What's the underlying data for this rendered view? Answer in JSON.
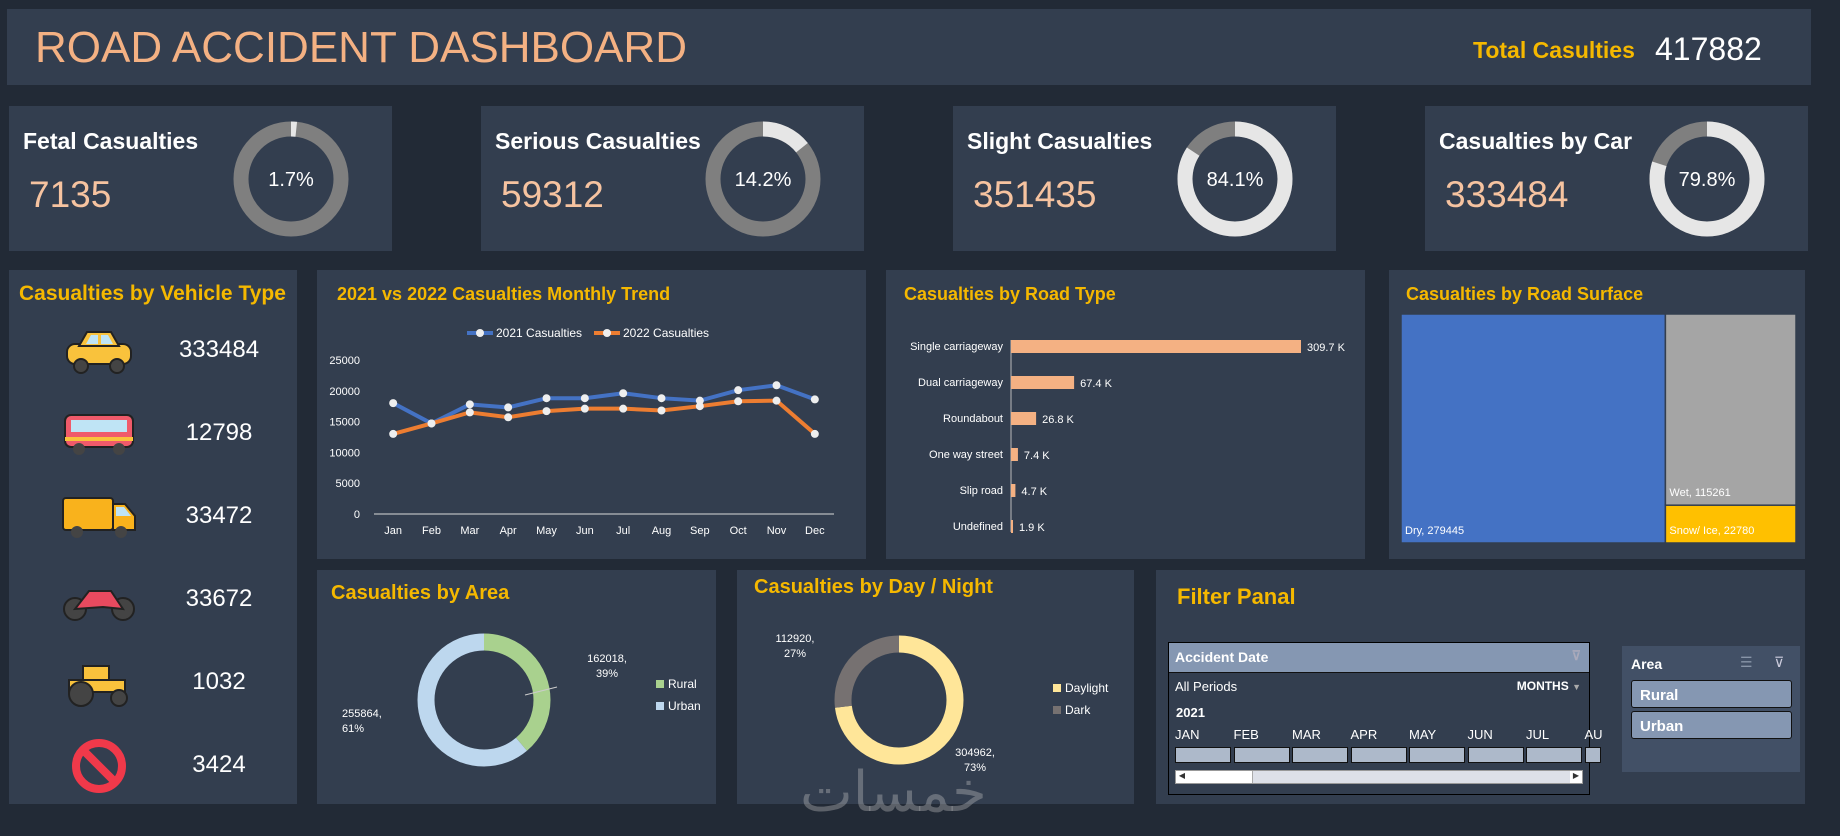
{
  "header": {
    "title": "ROAD ACCIDENT DASHBOARD",
    "total_label": "Total Casulties",
    "total_value": "417882"
  },
  "kpis": [
    {
      "title": "Fetal Casualties",
      "value": "7135",
      "pct_label": "1.7%",
      "pct": 1.7
    },
    {
      "title": "Serious Casualties",
      "value": "59312",
      "pct_label": "14.2%",
      "pct": 14.2
    },
    {
      "title": "Slight Casualties",
      "value": "351435",
      "pct_label": "84.1%",
      "pct": 84.1
    },
    {
      "title": "Casualties by Car",
      "value": "333484",
      "pct_label": "79.8%",
      "pct": 79.8
    }
  ],
  "vehicle": {
    "title": "Casualties by Vehicle Type",
    "items": [
      {
        "icon": "car-icon",
        "value": "333484"
      },
      {
        "icon": "bus-icon",
        "value": "12798"
      },
      {
        "icon": "van-icon",
        "value": "33472"
      },
      {
        "icon": "motorcycle-icon",
        "value": "33672"
      },
      {
        "icon": "tractor-icon",
        "value": "1032"
      },
      {
        "icon": "prohibited-icon",
        "value": "3424"
      }
    ]
  },
  "colors": {
    "s2021": "#4472c4",
    "s2022": "#ed7d31",
    "accent": "#f5b800",
    "bar": "#f4b183",
    "dry": "#4472c4",
    "wet": "#a5a5a5",
    "snow": "#ffc000",
    "rural": "#a9d18e",
    "urban": "#bdd7ee",
    "daylight": "#ffe699",
    "dark": "#767171"
  },
  "chart_data": [
    {
      "type": "line",
      "title": "2021 vs 2022 Casualties Monthly Trend",
      "categories": [
        "Jan",
        "Feb",
        "Mar",
        "Apr",
        "May",
        "Jun",
        "Jul",
        "Aug",
        "Sep",
        "Oct",
        "Nov",
        "Dec"
      ],
      "series": [
        {
          "name": "2021 Casualties",
          "values": [
            18000,
            14700,
            17800,
            17300,
            18800,
            18800,
            19600,
            18800,
            18400,
            20100,
            20900,
            18600
          ]
        },
        {
          "name": "2022 Casualties",
          "values": [
            13000,
            14700,
            16500,
            15700,
            16700,
            17100,
            17100,
            16800,
            17500,
            18300,
            18400,
            13000
          ]
        }
      ],
      "ylim": [
        0,
        25000
      ],
      "yticks": [
        "0",
        "5000",
        "10000",
        "15000",
        "20000",
        "25000"
      ],
      "legend": "top"
    },
    {
      "type": "bar",
      "orientation": "horizontal",
      "title": "Casualties by Road Type",
      "categories": [
        "Single carriageway",
        "Dual carriageway",
        "Roundabout",
        "One way street",
        "Slip road",
        "Undefined"
      ],
      "values": [
        309.7,
        67.4,
        26.8,
        7.4,
        4.7,
        1.9
      ],
      "labels": [
        "309.7 K",
        "67.4 K",
        "26.8 K",
        "7.4 K",
        "4.7 K",
        "1.9 K"
      ]
    },
    {
      "type": "treemap",
      "title": "Casualties by Road Surface",
      "categories": [
        "Dry",
        "Wet",
        "Snow/ Ice"
      ],
      "values": [
        279445,
        115261,
        22780
      ],
      "labels": [
        "Dry, 279445",
        "Wet, 115261",
        "Snow/ Ice, 22780"
      ]
    },
    {
      "type": "pie",
      "title": "Casualties by Area",
      "categories": [
        "Rural",
        "Urban"
      ],
      "values": [
        162018,
        255864
      ],
      "labels": [
        "162018, 39%",
        "255864, 61%"
      ],
      "legend": "right"
    },
    {
      "type": "pie",
      "title": "Casualties by Day / Night",
      "categories": [
        "Daylight",
        "Dark"
      ],
      "values": [
        304962,
        112920
      ],
      "labels": [
        "304962, 73%",
        "112920, 27%"
      ],
      "legend": "right"
    }
  ],
  "filter": {
    "title": "Filter Panal",
    "date": {
      "title": "Accident Date",
      "all": "All Periods",
      "level": "MONTHS",
      "year": "2021",
      "months": [
        "JAN",
        "FEB",
        "MAR",
        "APR",
        "MAY",
        "JUN",
        "JUL",
        "AU"
      ]
    },
    "area": {
      "title": "Area",
      "items": [
        "Rural",
        "Urban"
      ]
    }
  },
  "watermark": "خمسات"
}
